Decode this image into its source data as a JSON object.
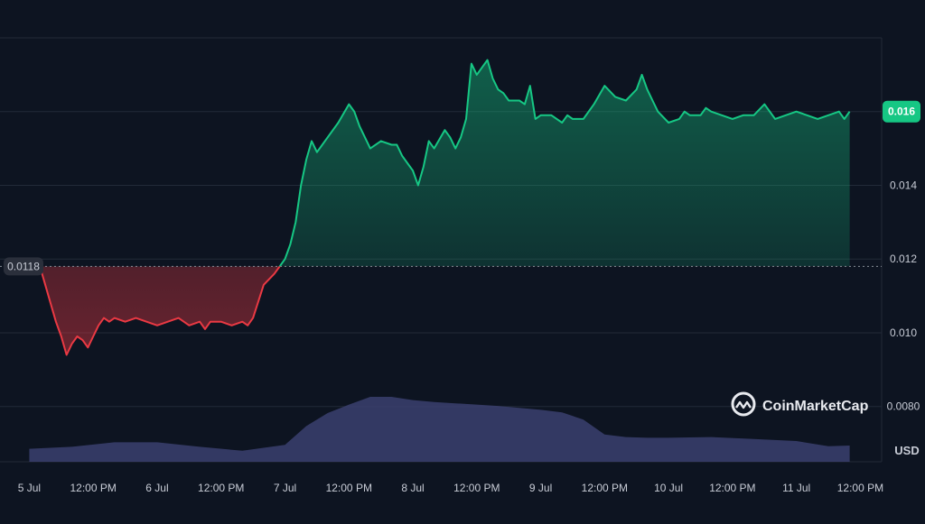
{
  "brand": {
    "name": "CoinMarketCap",
    "icon": "coinmarketcap-logo-icon"
  },
  "colors": {
    "background": "#0d1421",
    "up": "#16c784",
    "down": "#ea3943",
    "volume": "#3b3f6e",
    "grid": "#222a38",
    "text": "#c8ccd6"
  },
  "chart_data": {
    "type": "area",
    "baseline": {
      "value": 0.0118,
      "label": "0.0118"
    },
    "current_price": {
      "value": 0.016,
      "label": "0.016"
    },
    "y_axis": {
      "unit_label": "USD",
      "ticks": [
        {
          "value": 0.008,
          "label": "0.0080"
        },
        {
          "value": 0.01,
          "label": "0.010"
        },
        {
          "value": 0.012,
          "label": "0.012"
        },
        {
          "value": 0.014,
          "label": "0.014"
        }
      ],
      "range": [
        0.0065,
        0.018
      ]
    },
    "x_axis": {
      "range": [
        0,
        154
      ],
      "ticks": [
        {
          "t": 0,
          "label": "5 Jul"
        },
        {
          "t": 12,
          "label": "12:00 PM"
        },
        {
          "t": 24,
          "label": "6 Jul"
        },
        {
          "t": 36,
          "label": "12:00 PM"
        },
        {
          "t": 48,
          "label": "7 Jul"
        },
        {
          "t": 60,
          "label": "12:00 PM"
        },
        {
          "t": 72,
          "label": "8 Jul"
        },
        {
          "t": 84,
          "label": "12:00 PM"
        },
        {
          "t": 96,
          "label": "9 Jul"
        },
        {
          "t": 108,
          "label": "12:00 PM"
        },
        {
          "t": 120,
          "label": "10 Jul"
        },
        {
          "t": 132,
          "label": "12:00 PM"
        },
        {
          "t": 144,
          "label": "11 Jul"
        },
        {
          "t": 156,
          "label": "12:00 PM"
        }
      ]
    },
    "price_series": {
      "t": [
        2,
        3,
        4,
        5,
        6,
        7,
        8,
        9,
        10,
        11,
        12,
        13,
        14,
        15,
        16,
        18,
        20,
        22,
        24,
        26,
        28,
        30,
        32,
        33,
        34,
        36,
        38,
        40,
        41,
        42,
        44,
        46,
        47,
        48,
        49,
        50,
        51,
        52,
        53,
        54,
        55,
        56,
        58,
        60,
        61,
        62,
        63,
        64,
        66,
        68,
        69,
        70,
        71,
        72,
        73,
        74,
        75,
        76,
        78,
        79,
        80,
        81,
        82,
        83,
        84,
        85,
        86,
        87,
        88,
        89,
        90,
        92,
        93,
        94,
        95,
        96,
        98,
        100,
        101,
        102,
        104,
        106,
        108,
        110,
        112,
        114,
        115,
        116,
        117,
        118,
        120,
        122,
        123,
        124,
        125,
        126,
        127,
        128,
        130,
        132,
        134,
        136,
        138,
        140,
        142,
        144,
        146,
        148,
        150,
        152,
        153,
        154
      ],
      "values": [
        0.0118,
        0.0113,
        0.0108,
        0.0103,
        0.0099,
        0.0094,
        0.0097,
        0.0099,
        0.0098,
        0.0096,
        0.0099,
        0.0102,
        0.0104,
        0.0103,
        0.0104,
        0.0103,
        0.0104,
        0.0103,
        0.0102,
        0.0103,
        0.0104,
        0.0102,
        0.0103,
        0.0101,
        0.0103,
        0.0103,
        0.0102,
        0.0103,
        0.0102,
        0.0104,
        0.0113,
        0.0116,
        0.0118,
        0.012,
        0.0124,
        0.013,
        0.014,
        0.0147,
        0.0152,
        0.0149,
        0.0151,
        0.0153,
        0.0157,
        0.0162,
        0.016,
        0.0156,
        0.0153,
        0.015,
        0.0152,
        0.0151,
        0.0151,
        0.0148,
        0.0146,
        0.0144,
        0.014,
        0.0145,
        0.0152,
        0.015,
        0.0155,
        0.0153,
        0.015,
        0.0153,
        0.0158,
        0.0173,
        0.017,
        0.0172,
        0.0174,
        0.0169,
        0.0166,
        0.0165,
        0.0163,
        0.0163,
        0.0162,
        0.0167,
        0.0158,
        0.0159,
        0.0159,
        0.0157,
        0.0159,
        0.0158,
        0.0158,
        0.0162,
        0.0167,
        0.0164,
        0.0163,
        0.0166,
        0.017,
        0.0166,
        0.0163,
        0.016,
        0.0157,
        0.0158,
        0.016,
        0.0159,
        0.0159,
        0.0159,
        0.0161,
        0.016,
        0.0159,
        0.0158,
        0.0159,
        0.0159,
        0.0162,
        0.0158,
        0.0159,
        0.016,
        0.0159,
        0.0158,
        0.0159,
        0.016,
        0.0158,
        0.016
      ]
    },
    "volume_series": {
      "t": [
        0,
        8,
        16,
        24,
        32,
        40,
        48,
        52,
        56,
        60,
        64,
        68,
        72,
        76,
        80,
        84,
        88,
        92,
        96,
        100,
        104,
        108,
        112,
        116,
        120,
        128,
        136,
        144,
        150,
        154
      ],
      "values": [
        0.2,
        0.23,
        0.3,
        0.3,
        0.23,
        0.17,
        0.26,
        0.55,
        0.75,
        0.88,
        1.0,
        1.0,
        0.95,
        0.92,
        0.9,
        0.88,
        0.86,
        0.83,
        0.8,
        0.76,
        0.65,
        0.42,
        0.38,
        0.37,
        0.37,
        0.38,
        0.35,
        0.32,
        0.24,
        0.25
      ]
    }
  }
}
